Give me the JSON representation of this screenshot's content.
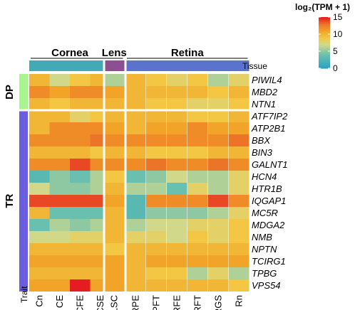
{
  "chart_data": {
    "type": "heatmap",
    "legend_title": "log₂(TPM + 1)",
    "legend_ticks": [
      15,
      10,
      5,
      0
    ],
    "value_range": [
      0,
      15
    ],
    "tissue_groups": [
      {
        "label": "Cornea",
        "color": "#43a9b5"
      },
      {
        "label": "Lens",
        "color": "#8c4f8f"
      },
      {
        "label": "Retina",
        "color": "#5b73cf"
      }
    ],
    "tissue_row_label": "Tissue",
    "trait_label": "Trait",
    "trait_groups": [
      {
        "label": "DP",
        "color": "#a8f48e"
      },
      {
        "label": "TR",
        "color": "#6b5de0"
      }
    ],
    "columns": [
      "Cn",
      "CE",
      "CFE",
      "CSE",
      "LSC",
      "RPE",
      "RPFT",
      "RFE",
      "RFT",
      "RGS",
      "Rn"
    ],
    "rows": [
      "PIWIL4",
      "MBD2",
      "NTN1",
      "ATF7IP2",
      "ATP2B1",
      "BBX",
      "BIN3",
      "GALNT1",
      "HCN4",
      "HTR1B",
      "IQGAP1",
      "MC5R",
      "MDGA2",
      "NMB",
      "NPTN",
      "TCIRG1",
      "TPBG",
      "VPS54"
    ],
    "values": [
      [
        10,
        7,
        9,
        10,
        6,
        10,
        9,
        8,
        9,
        6,
        8
      ],
      [
        12,
        11,
        12,
        12,
        11,
        10,
        10,
        10,
        10,
        9,
        10
      ],
      [
        10,
        9,
        10,
        10,
        10,
        10,
        9,
        9,
        8,
        8,
        9
      ],
      [
        10,
        10,
        8,
        9,
        10,
        10,
        10,
        10,
        9,
        9,
        10
      ],
      [
        10,
        12,
        12,
        12,
        11,
        10,
        11,
        11,
        12,
        11,
        11
      ],
      [
        12,
        12,
        12,
        13,
        12,
        12,
        12,
        12,
        12,
        12,
        13
      ],
      [
        10,
        10,
        10,
        9,
        10,
        10,
        9,
        9,
        9,
        10,
        10
      ],
      [
        12,
        12,
        14,
        12,
        12,
        12,
        13,
        12,
        12,
        13,
        12
      ],
      [
        3,
        5,
        4,
        6,
        9,
        4,
        5,
        7,
        6,
        6,
        8
      ],
      [
        7,
        5,
        5,
        6,
        10,
        6,
        6,
        4,
        8,
        6,
        8
      ],
      [
        14,
        14,
        14,
        14,
        11,
        3,
        12,
        12,
        12,
        14,
        12
      ],
      [
        10,
        4,
        4,
        4,
        10,
        3,
        5,
        5,
        5,
        6,
        8
      ],
      [
        4,
        6,
        5,
        6,
        10,
        6,
        7,
        7,
        8,
        8,
        9
      ],
      [
        7,
        7,
        8,
        8,
        10,
        8,
        8,
        7,
        9,
        8,
        9
      ],
      [
        10,
        10,
        10,
        10,
        9,
        10,
        10,
        10,
        10,
        10,
        10
      ],
      [
        11,
        11,
        11,
        11,
        11,
        10,
        11,
        11,
        11,
        11,
        11
      ],
      [
        10,
        10,
        10,
        10,
        11,
        10,
        9,
        9,
        6,
        8,
        6
      ],
      [
        11,
        11,
        15,
        11,
        11,
        10,
        10,
        10,
        10,
        10,
        9
      ]
    ]
  }
}
